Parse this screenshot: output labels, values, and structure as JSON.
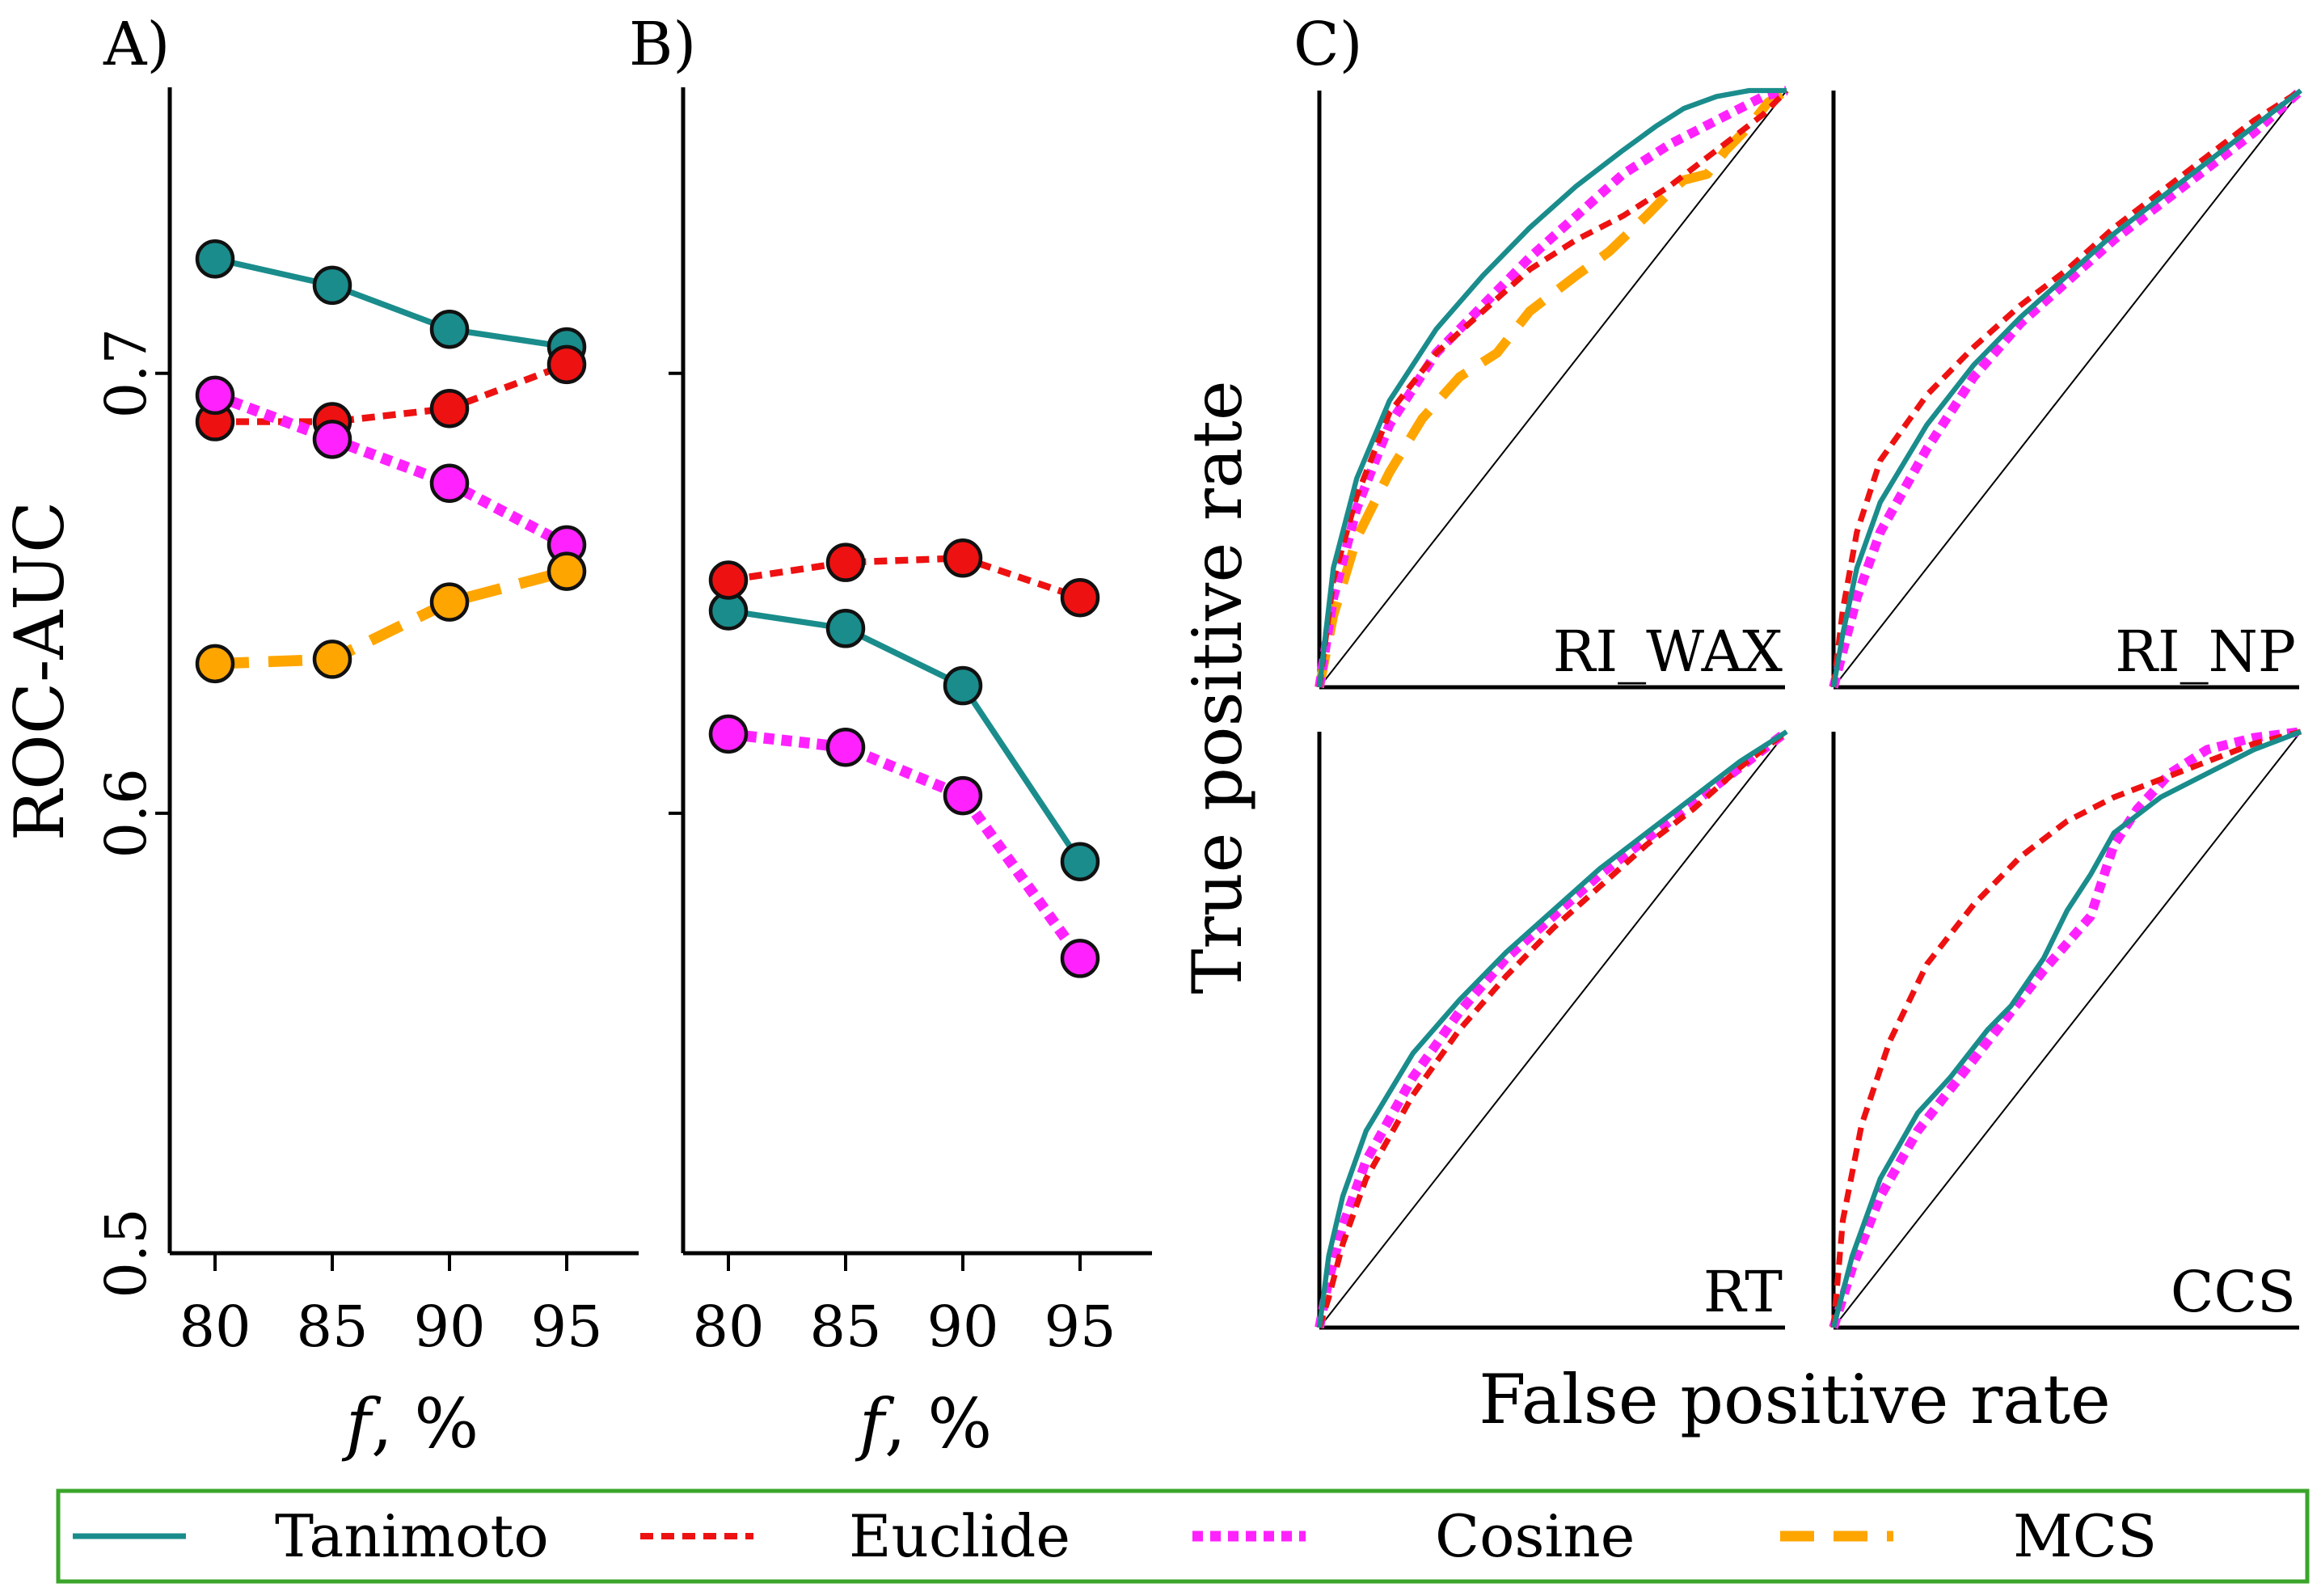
{
  "chart_data": [
    {
      "panel": "A)",
      "type": "line",
      "xlabel_italic": "f",
      "xlabel_rest": ", %",
      "ylabel": "ROC-AUC",
      "categories": [
        "80",
        "85",
        "90",
        "95"
      ],
      "ylim": [
        0.5,
        0.765
      ],
      "yticks": [
        "0.5",
        "0.6",
        "0.7"
      ],
      "series": [
        {
          "name": "Tanimoto",
          "values": [
            0.726,
            0.72,
            0.71,
            0.706
          ]
        },
        {
          "name": "Euclide",
          "values": [
            0.689,
            0.689,
            0.692,
            0.702
          ]
        },
        {
          "name": "Cosine",
          "values": [
            0.695,
            0.685,
            0.675,
            0.661
          ]
        },
        {
          "name": "MCS",
          "values": [
            0.634,
            0.635,
            0.648,
            0.655
          ]
        }
      ]
    },
    {
      "panel": "B)",
      "type": "line",
      "xlabel_italic": "f",
      "xlabel_rest": ", %",
      "categories": [
        "80",
        "85",
        "90",
        "95"
      ],
      "ylim": [
        0.5,
        0.765
      ],
      "series": [
        {
          "name": "Tanimoto",
          "values": [
            0.646,
            0.642,
            0.629,
            0.589
          ]
        },
        {
          "name": "Euclide",
          "values": [
            0.653,
            0.657,
            0.658,
            0.649
          ]
        },
        {
          "name": "Cosine",
          "values": [
            0.618,
            0.615,
            0.604,
            0.567
          ]
        }
      ]
    },
    {
      "panel": "C)",
      "type": "line",
      "xlabel": "False positive rate",
      "ylabel": "True positive rate",
      "subplots": [
        {
          "name": "RI_WAX",
          "series": [
            {
              "name": "Tanimoto",
              "x": [
                0,
                0.03,
                0.08,
                0.15,
                0.25,
                0.35,
                0.45,
                0.55,
                0.65,
                0.72,
                0.78,
                0.85,
                0.92,
                1
              ],
              "y": [
                0,
                0.2,
                0.35,
                0.48,
                0.6,
                0.69,
                0.77,
                0.84,
                0.9,
                0.94,
                0.97,
                0.99,
                1,
                1
              ]
            },
            {
              "name": "Euclide",
              "x": [
                0,
                0.03,
                0.08,
                0.15,
                0.25,
                0.35,
                0.45,
                0.55,
                0.65,
                0.75,
                0.85,
                0.95,
                1
              ],
              "y": [
                0,
                0.18,
                0.32,
                0.46,
                0.56,
                0.63,
                0.7,
                0.75,
                0.79,
                0.84,
                0.9,
                0.96,
                1
              ]
            },
            {
              "name": "Cosine",
              "x": [
                0,
                0.03,
                0.08,
                0.15,
                0.25,
                0.35,
                0.45,
                0.55,
                0.65,
                0.75,
                0.85,
                0.95,
                1
              ],
              "y": [
                0,
                0.15,
                0.3,
                0.44,
                0.56,
                0.64,
                0.72,
                0.79,
                0.86,
                0.91,
                0.95,
                0.99,
                1
              ]
            },
            {
              "name": "MCS",
              "x": [
                0,
                0.03,
                0.08,
                0.15,
                0.22,
                0.3,
                0.38,
                0.45,
                0.5,
                0.55,
                0.62,
                0.7,
                0.75,
                0.78,
                0.83,
                0.87,
                0.92,
                0.96,
                1
              ],
              "y": [
                0,
                0.12,
                0.25,
                0.36,
                0.45,
                0.52,
                0.56,
                0.63,
                0.66,
                0.69,
                0.73,
                0.79,
                0.83,
                0.85,
                0.86,
                0.9,
                0.94,
                0.98,
                1
              ]
            }
          ]
        },
        {
          "name": "RI_NP",
          "series": [
            {
              "name": "Tanimoto",
              "x": [
                0,
                0.02,
                0.05,
                0.1,
                0.2,
                0.3,
                0.4,
                0.5,
                0.6,
                0.7,
                0.8,
                0.9,
                1
              ],
              "y": [
                0,
                0.09,
                0.2,
                0.31,
                0.44,
                0.54,
                0.62,
                0.69,
                0.76,
                0.82,
                0.88,
                0.94,
                1
              ]
            },
            {
              "name": "Euclide",
              "x": [
                0,
                0.02,
                0.05,
                0.1,
                0.2,
                0.3,
                0.4,
                0.5,
                0.6,
                0.7,
                0.8,
                0.9,
                1
              ],
              "y": [
                0,
                0.13,
                0.26,
                0.38,
                0.49,
                0.57,
                0.64,
                0.7,
                0.77,
                0.83,
                0.89,
                0.95,
                1
              ]
            },
            {
              "name": "Cosine",
              "x": [
                0,
                0.02,
                0.05,
                0.1,
                0.2,
                0.3,
                0.4,
                0.5,
                0.6,
                0.7,
                0.8,
                0.9,
                1
              ],
              "y": [
                0,
                0.06,
                0.15,
                0.26,
                0.4,
                0.52,
                0.61,
                0.68,
                0.75,
                0.81,
                0.87,
                0.93,
                1
              ]
            }
          ]
        },
        {
          "name": "RT",
          "series": [
            {
              "name": "Tanimoto",
              "x": [
                0,
                0.02,
                0.05,
                0.1,
                0.2,
                0.3,
                0.4,
                0.5,
                0.6,
                0.7,
                0.8,
                0.9,
                1
              ],
              "y": [
                0,
                0.12,
                0.22,
                0.33,
                0.46,
                0.55,
                0.63,
                0.7,
                0.77,
                0.83,
                0.89,
                0.95,
                1
              ]
            },
            {
              "name": "Euclide",
              "x": [
                0,
                0.02,
                0.05,
                0.1,
                0.2,
                0.3,
                0.4,
                0.5,
                0.6,
                0.7,
                0.8,
                0.9,
                1
              ],
              "y": [
                0,
                0.05,
                0.14,
                0.25,
                0.39,
                0.5,
                0.59,
                0.67,
                0.74,
                0.81,
                0.87,
                0.94,
                1
              ]
            },
            {
              "name": "Cosine",
              "x": [
                0,
                0.02,
                0.05,
                0.1,
                0.2,
                0.3,
                0.4,
                0.5,
                0.6,
                0.7,
                0.8,
                0.9,
                1
              ],
              "y": [
                0,
                0.08,
                0.17,
                0.28,
                0.42,
                0.53,
                0.62,
                0.69,
                0.76,
                0.82,
                0.88,
                0.94,
                1
              ]
            }
          ]
        },
        {
          "name": "CCS",
          "series": [
            {
              "name": "Tanimoto",
              "x": [
                0,
                0.04,
                0.1,
                0.18,
                0.25,
                0.33,
                0.38,
                0.45,
                0.5,
                0.55,
                0.6,
                0.7,
                0.8,
                0.9,
                1
              ],
              "y": [
                0,
                0.12,
                0.25,
                0.36,
                0.42,
                0.5,
                0.54,
                0.62,
                0.7,
                0.76,
                0.83,
                0.89,
                0.93,
                0.97,
                1
              ]
            },
            {
              "name": "Euclide",
              "x": [
                0,
                0.02,
                0.06,
                0.12,
                0.2,
                0.3,
                0.4,
                0.5,
                0.6,
                0.7,
                0.8,
                0.9,
                1
              ],
              "y": [
                0,
                0.18,
                0.34,
                0.48,
                0.61,
                0.71,
                0.79,
                0.85,
                0.89,
                0.92,
                0.95,
                0.98,
                1
              ]
            },
            {
              "name": "Cosine",
              "x": [
                0,
                0.04,
                0.1,
                0.18,
                0.28,
                0.38,
                0.45,
                0.55,
                0.6,
                0.65,
                0.72,
                0.8,
                0.9,
                1
              ],
              "y": [
                0,
                0.1,
                0.22,
                0.33,
                0.43,
                0.53,
                0.6,
                0.69,
                0.81,
                0.87,
                0.93,
                0.97,
                0.99,
                1
              ]
            }
          ]
        }
      ]
    }
  ],
  "legend": {
    "items": [
      {
        "name": "Tanimoto"
      },
      {
        "name": "Euclide"
      },
      {
        "name": "Cosine"
      },
      {
        "name": "MCS"
      }
    ]
  },
  "colors": {
    "Tanimoto": "#1a8c8c",
    "Euclide": "#ee1111",
    "Cosine": "#ff22ff",
    "MCS": "#ffa500",
    "legend_border": "#3aa52a"
  }
}
